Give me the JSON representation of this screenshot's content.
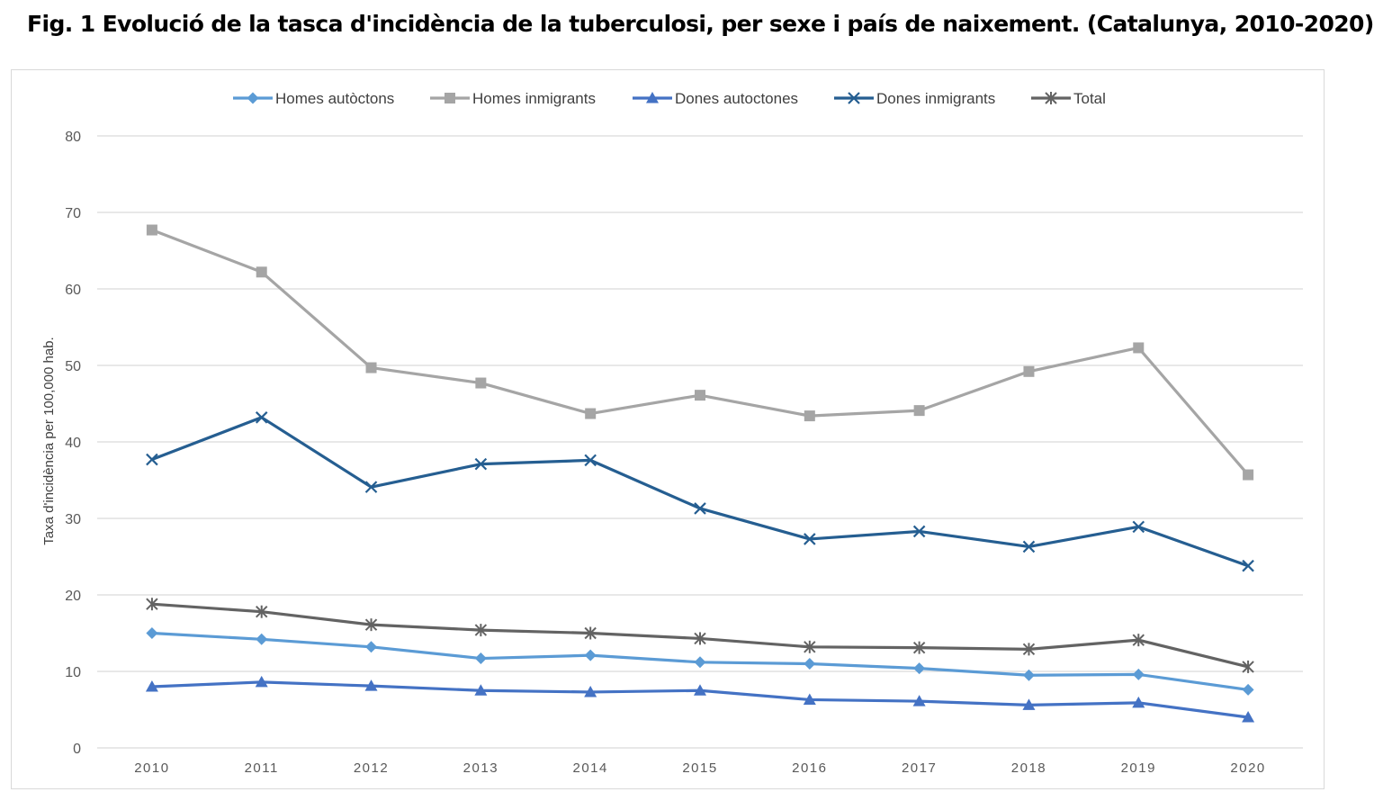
{
  "figure": {
    "title": "Fig. 1 Evolució de la tasca d'incidència de la tuberculosi, per sexe i país de naixement. (Catalunya, 2010-2020)"
  },
  "chart_data": {
    "type": "line",
    "title": "Fig. 1 Evolució de la tasca d'incidència de la tuberculosi, per sexe i país de naixement. (Catalunya, 2010-2020)",
    "xlabel": "",
    "ylabel": "Taxa d'incidència per 100,000 hab.",
    "x": [
      "2010",
      "2011",
      "2012",
      "2013",
      "2014",
      "2015",
      "2016",
      "2017",
      "2018",
      "2019",
      "2020"
    ],
    "ylim": [
      0,
      80
    ],
    "yticks": [
      "0",
      "10",
      "20",
      "30",
      "40",
      "50",
      "60",
      "70",
      "80"
    ],
    "grid": true,
    "legend_position": "top",
    "series": [
      {
        "name": "Homes autòctons",
        "color": "#5b9bd5",
        "marker": "diamond",
        "values": [
          15.0,
          14.2,
          13.2,
          11.7,
          12.1,
          11.2,
          11.0,
          10.4,
          9.5,
          9.6,
          7.6
        ]
      },
      {
        "name": "Homes inmigrants",
        "color": "#a5a5a5",
        "marker": "square",
        "values": [
          67.7,
          62.2,
          49.7,
          47.7,
          43.7,
          46.1,
          43.4,
          44.1,
          49.2,
          52.3,
          35.7
        ]
      },
      {
        "name": "Dones autoctones",
        "color": "#4472c4",
        "marker": "triangle",
        "values": [
          8.0,
          8.6,
          8.1,
          7.5,
          7.3,
          7.5,
          6.3,
          6.1,
          5.6,
          5.9,
          4.0
        ]
      },
      {
        "name": "Dones inmigrants",
        "color": "#255e91",
        "marker": "x",
        "values": [
          37.7,
          43.2,
          34.1,
          37.1,
          37.6,
          31.3,
          27.3,
          28.3,
          26.3,
          28.9,
          23.8
        ]
      },
      {
        "name": "Total",
        "color": "#636363",
        "marker": "star",
        "values": [
          18.8,
          17.8,
          16.1,
          15.4,
          15.0,
          14.3,
          13.2,
          13.1,
          12.9,
          14.1,
          10.6
        ]
      }
    ]
  }
}
